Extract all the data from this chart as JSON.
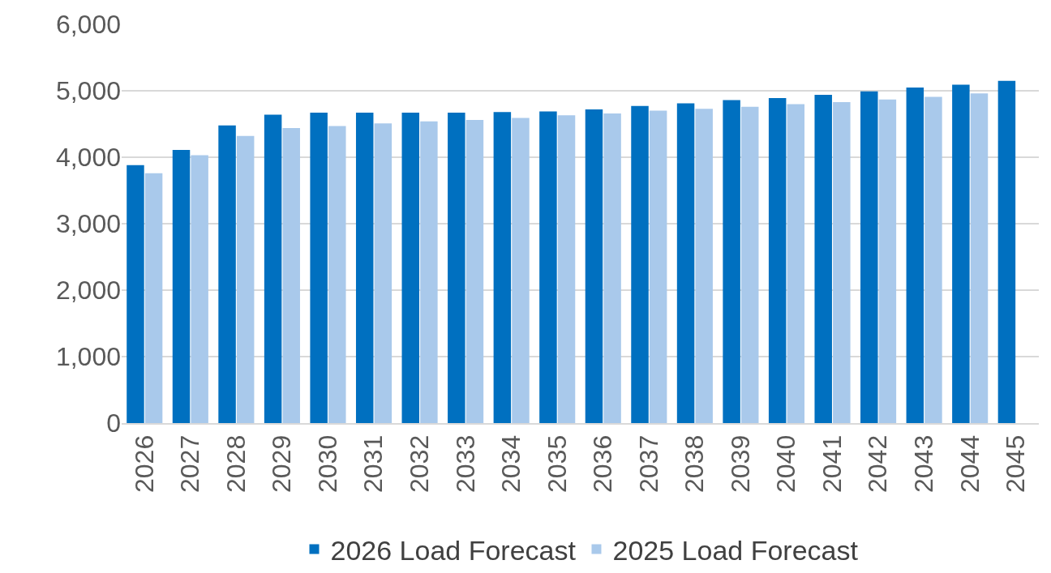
{
  "chart_data": {
    "type": "bar",
    "categories": [
      "2026",
      "2027",
      "2028",
      "2029",
      "2030",
      "2031",
      "2032",
      "2033",
      "2034",
      "2035",
      "2036",
      "2037",
      "2038",
      "2039",
      "2040",
      "2041",
      "2042",
      "2043",
      "2044",
      "2045"
    ],
    "series": [
      {
        "name": "2026 Load Forecast",
        "color": "#0070c0",
        "values": [
          3880,
          4110,
          4480,
          4640,
          4670,
          4670,
          4670,
          4670,
          4680,
          4690,
          4720,
          4770,
          4810,
          4860,
          4890,
          4940,
          4990,
          5050,
          5090,
          5150
        ]
      },
      {
        "name": "2025 Load Forecast",
        "color": "#a9c9eb",
        "values": [
          3760,
          4030,
          4320,
          4440,
          4470,
          4510,
          4540,
          4560,
          4590,
          4630,
          4660,
          4700,
          4730,
          4760,
          4800,
          4830,
          4870,
          4910,
          4960,
          null
        ]
      }
    ],
    "ylim": [
      0,
      6000
    ],
    "yticks": [
      {
        "value": 0,
        "label": "0"
      },
      {
        "value": 1000,
        "label": "1,000"
      },
      {
        "value": 2000,
        "label": "2,000"
      },
      {
        "value": 3000,
        "label": "3,000"
      },
      {
        "value": 4000,
        "label": "4,000"
      },
      {
        "value": 5000,
        "label": "5,000"
      },
      {
        "value": 6000,
        "label": "6,000"
      }
    ],
    "grid": "y",
    "legend": "bottom"
  }
}
